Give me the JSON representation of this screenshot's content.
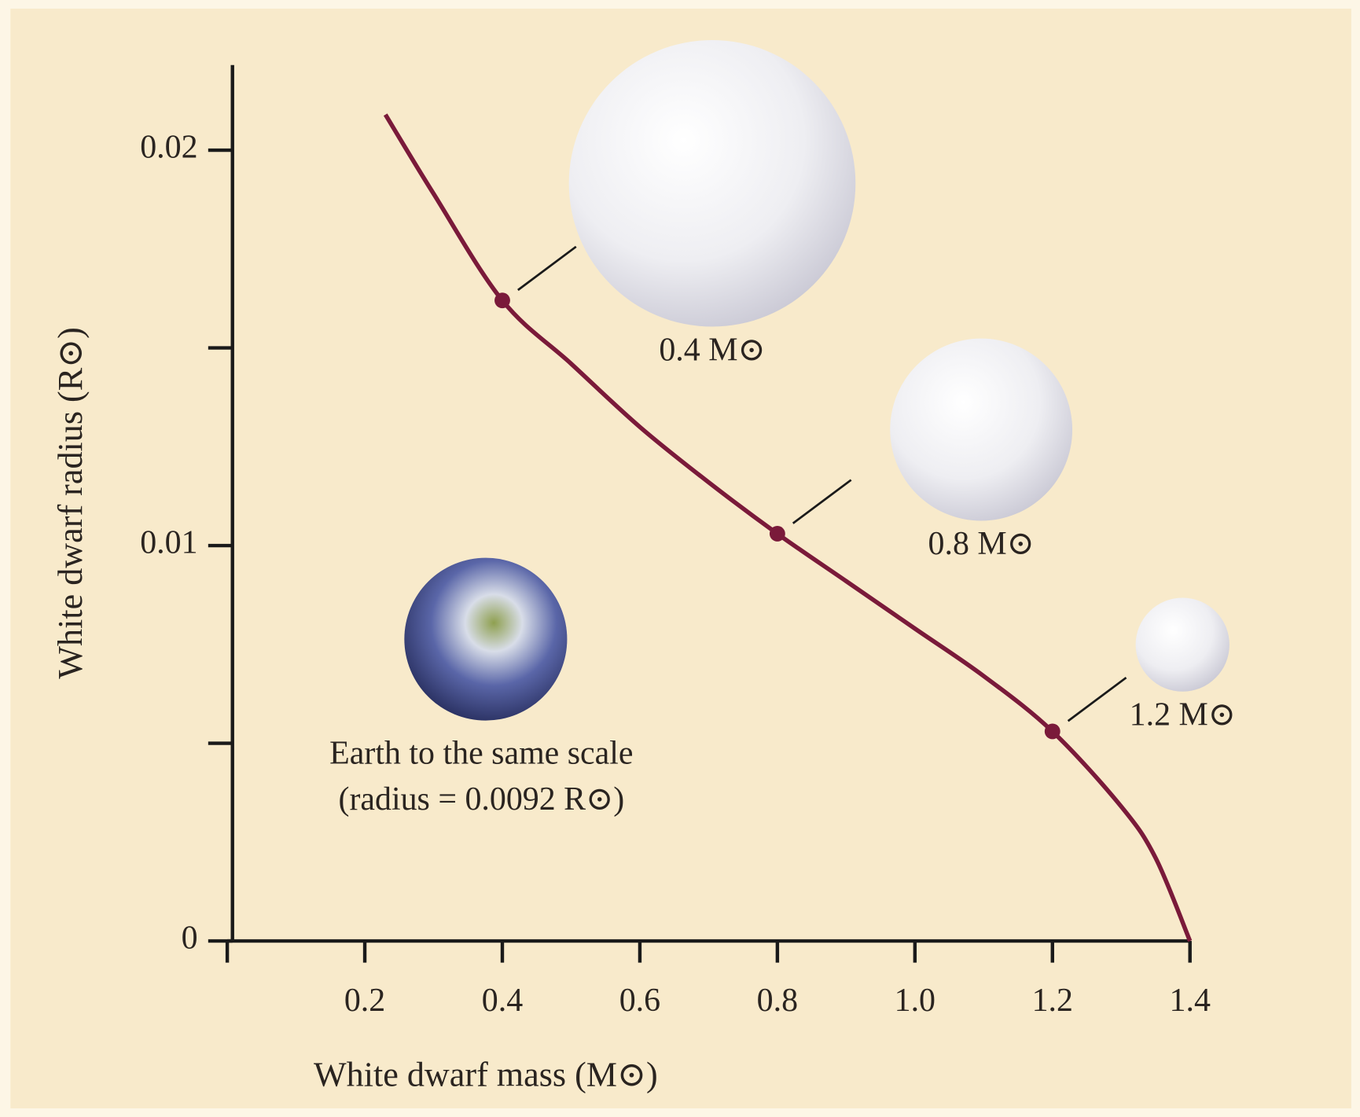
{
  "chart_data": {
    "type": "line",
    "x_label": "White dwarf mass (M⊙)",
    "y_label": "White dwarf radius (R⊙)",
    "x": [
      0.23,
      0.3,
      0.4,
      0.5,
      0.6,
      0.7,
      0.8,
      0.9,
      1.0,
      1.1,
      1.2,
      1.3,
      1.35,
      1.4
    ],
    "series": [
      {
        "color": "#7a1a3a",
        "values": [
          0.0209,
          0.0189,
          0.0162,
          0.0146,
          0.013,
          0.0116,
          0.0103,
          0.0091,
          0.0079,
          0.0067,
          0.0053,
          0.0034,
          0.0021,
          0
        ]
      }
    ],
    "xlim": [
      0,
      1.4
    ],
    "ylim": [
      0,
      0.022
    ],
    "xticks": [
      0.2,
      0.4,
      0.6,
      0.8,
      {
        "value": 1,
        "label": "1.0"
      },
      1.2,
      1.4
    ],
    "yticks": [
      0,
      0.01,
      0.02
    ],
    "y_minor_ticks": [
      0.005,
      0.015
    ],
    "highlights": [
      {
        "x": 0.4,
        "y": 0.0162,
        "label": "0.4 M⊙"
      },
      {
        "x": 0.8,
        "y": 0.0103,
        "label": "0.8 M⊙"
      },
      {
        "x": 1.2,
        "y": 0.0053,
        "label": "1.2 M⊙"
      }
    ],
    "earth": {
      "radius": 0.0092,
      "caption": "Earth to the same scale",
      "radius_label": "(radius = 0.0092 R⊙)"
    }
  }
}
